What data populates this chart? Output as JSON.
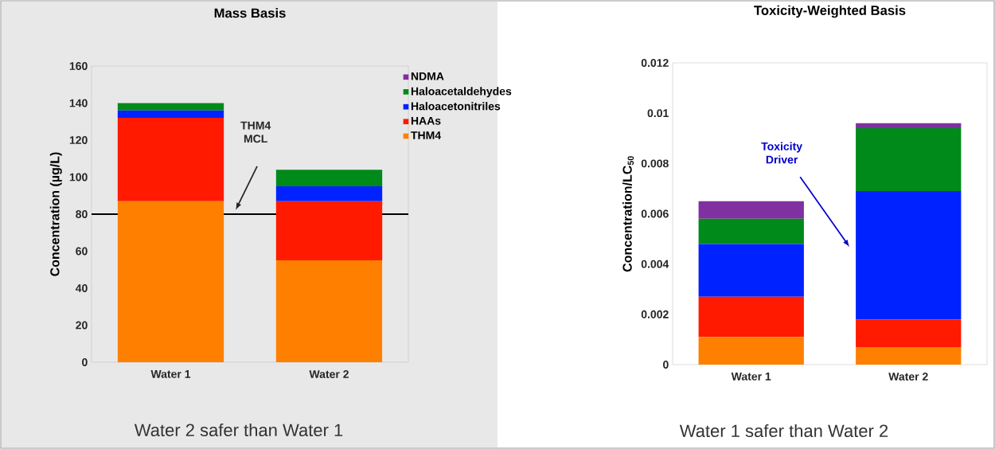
{
  "chart_data": [
    {
      "type": "bar",
      "stacked": true,
      "title": "Mass Basis",
      "ylabel": "Concentration (µg/L)",
      "categories": [
        "Water 1",
        "Water 2"
      ],
      "series": [
        {
          "name": "THM4",
          "color": "#ff8000",
          "values": [
            87,
            55
          ]
        },
        {
          "name": "HAAs",
          "color": "#ff1a00",
          "values": [
            45,
            32
          ]
        },
        {
          "name": "Haloacetonitriles",
          "color": "#0022ff",
          "values": [
            4,
            8
          ]
        },
        {
          "name": "Haloacetaldehydes",
          "color": "#008a1a",
          "values": [
            4,
            9
          ]
        },
        {
          "name": "NDMA",
          "color": "#8030a0",
          "values": [
            0,
            0
          ]
        }
      ],
      "ylim": [
        0,
        160
      ],
      "yticks": [
        0,
        20,
        40,
        60,
        80,
        100,
        120,
        140,
        160
      ],
      "legend": "right",
      "ref_lines": [
        {
          "axis": "y",
          "value": 80,
          "color": "#000000"
        }
      ],
      "annotations": [
        "THM4 MCL",
        "Water 2 safer than Water 1"
      ]
    },
    {
      "type": "bar",
      "stacked": true,
      "title": "Toxicity-Weighted Basis",
      "ylabel": "Concentration/LC$_{50}$",
      "categories": [
        "Water 1",
        "Water 2"
      ],
      "series": [
        {
          "color": "#ff8000",
          "values": [
            0.0011,
            0.0007
          ]
        },
        {
          "color": "#ff1a00",
          "values": [
            0.0016,
            0.0011
          ]
        },
        {
          "color": "#0022ff",
          "values": [
            0.0021,
            0.0051
          ]
        },
        {
          "color": "#008a1a",
          "values": [
            0.001,
            0.0025
          ]
        },
        {
          "color": "#8030a0",
          "values": [
            0.0007,
            0.0002
          ]
        }
      ],
      "ylim": [
        0,
        0.012
      ],
      "yticks": [
        0,
        0.002,
        0.004,
        0.006,
        0.008,
        0.01,
        0.012
      ],
      "annotations": [
        "Toxicity Driver",
        "Water 1 safer than Water 2"
      ]
    }
  ]
}
